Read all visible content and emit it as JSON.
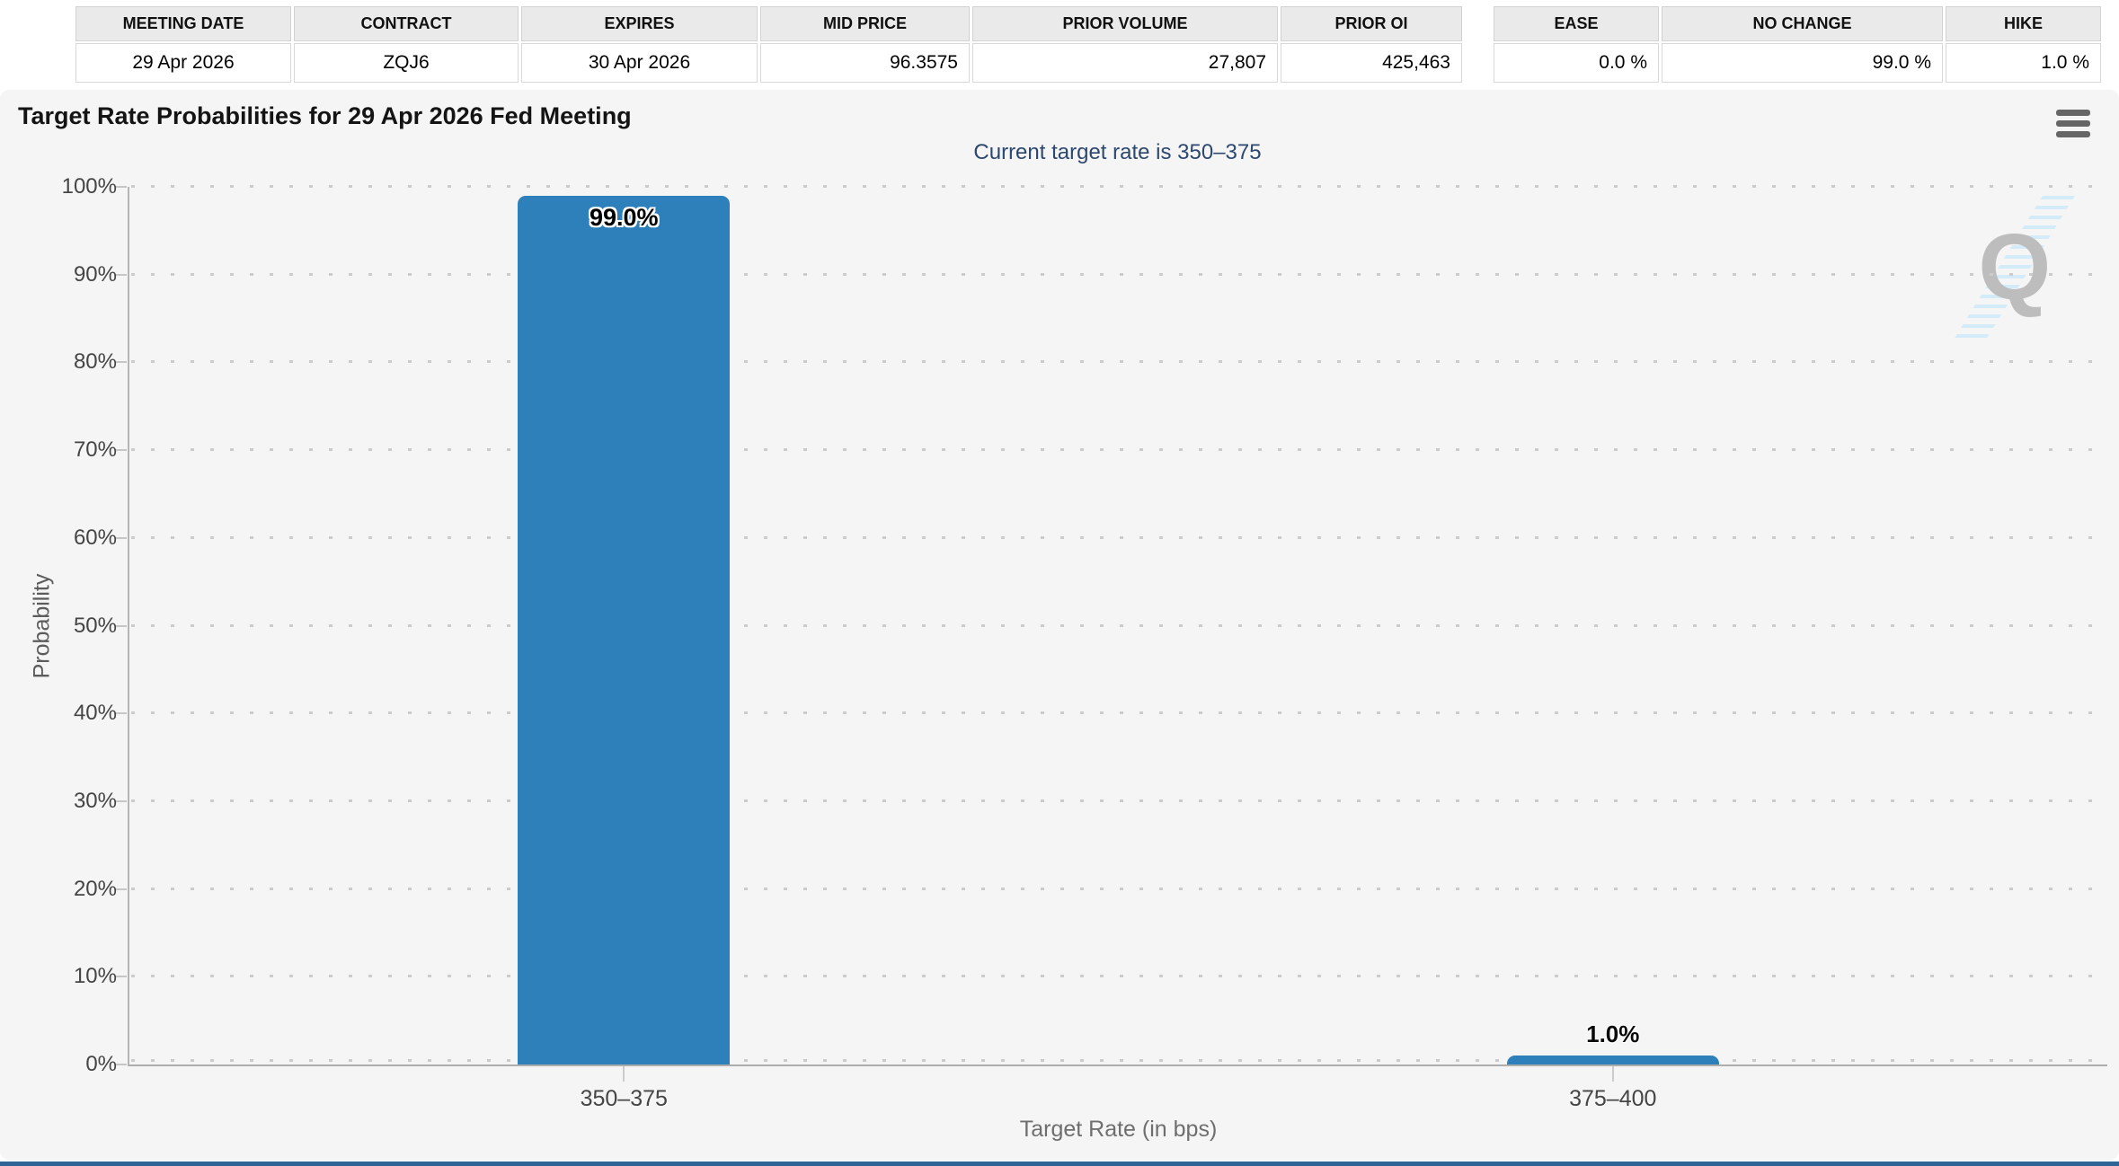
{
  "contract_table": {
    "headers": [
      "MEETING DATE",
      "CONTRACT",
      "EXPIRES",
      "MID PRICE",
      "PRIOR VOLUME",
      "PRIOR OI"
    ],
    "row": [
      "29 Apr 2026",
      "ZQJ6",
      "30 Apr 2026",
      "96.3575",
      "27,807",
      "425,463"
    ]
  },
  "action_table": {
    "headers": [
      "EASE",
      "NO CHANGE",
      "HIKE"
    ],
    "row": [
      "0.0 %",
      "99.0 %",
      "1.0 %"
    ]
  },
  "chart": {
    "title": "Target Rate Probabilities for 29 Apr 2026 Fed Meeting",
    "subtitle": "Current target rate is 350–375",
    "menu_icon": "hamburger-menu-icon",
    "watermark_letter": "Q"
  },
  "chart_data": {
    "type": "bar",
    "title": "Target Rate Probabilities for 29 Apr 2026 Fed Meeting",
    "subtitle": "Current target rate is 350–375",
    "xlabel": "Target Rate (in bps)",
    "ylabel": "Probability",
    "categories": [
      "350–375",
      "375–400"
    ],
    "values": [
      99.0,
      1.0
    ],
    "bar_labels": [
      "99.0%",
      "1.0%"
    ],
    "ylim": [
      0,
      100
    ],
    "yticks": [
      {
        "v": 0,
        "label": "0%"
      },
      {
        "v": 10,
        "label": "10%"
      },
      {
        "v": 20,
        "label": "20%"
      },
      {
        "v": 30,
        "label": "30%"
      },
      {
        "v": 40,
        "label": "40%"
      },
      {
        "v": 50,
        "label": "50%"
      },
      {
        "v": 60,
        "label": "60%"
      },
      {
        "v": 70,
        "label": "70%"
      },
      {
        "v": 80,
        "label": "80%"
      },
      {
        "v": 90,
        "label": "90%"
      },
      {
        "v": 100,
        "label": "100%"
      }
    ],
    "grid": "dotted horizontal gridlines",
    "legend": "none",
    "bar_color": "#2d80ba"
  },
  "colors": {
    "bar_blue": "#2d80ba",
    "panel_background": "#f5f5f5",
    "subtitle_navy": "#2c4770",
    "header_cell_gray": "#eaeaea",
    "bottom_bar_blue": "#2f6496",
    "watermark_gray": "#bdbdbd",
    "watermark_stripe_blue": "#d4ecfa"
  }
}
